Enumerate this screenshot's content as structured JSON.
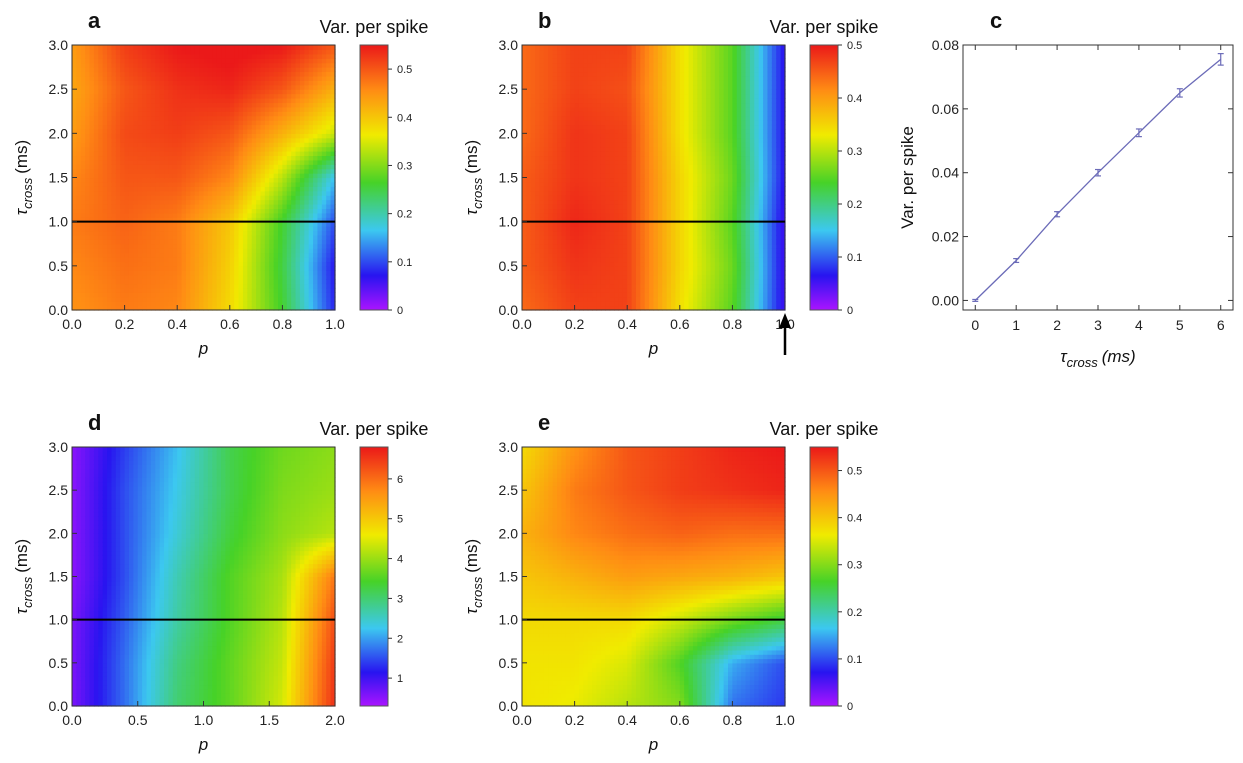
{
  "chart_data": [
    {
      "panel": "a",
      "type": "heatmap",
      "colorbar_title": "Var. per spike",
      "xlabel": "p",
      "ylabel_main": "τ",
      "ylabel_sub": "cross",
      "ylabel_unit": "(ms)",
      "xlim": [
        0,
        1.0
      ],
      "ylim": [
        0,
        3.0
      ],
      "xticks": [
        "0.0",
        "0.2",
        "0.4",
        "0.6",
        "0.8",
        "1.0"
      ],
      "yticks": [
        "0.0",
        "0.5",
        "1.0",
        "1.5",
        "2.0",
        "2.5",
        "3.0"
      ],
      "cbar_range": [
        0,
        0.55
      ],
      "cbar_ticks": [
        "0",
        "0.1",
        "0.2",
        "0.3",
        "0.4",
        "0.5"
      ],
      "hline_y": 1.0,
      "x": [
        0.0,
        0.2,
        0.4,
        0.6,
        0.8,
        1.0
      ],
      "y": [
        0.0,
        0.5,
        1.0,
        1.5,
        2.0,
        2.5,
        3.0
      ],
      "z": [
        [
          0.45,
          0.47,
          0.46,
          0.38,
          0.26,
          0.08
        ],
        [
          0.46,
          0.48,
          0.47,
          0.39,
          0.25,
          0.07
        ],
        [
          0.47,
          0.49,
          0.47,
          0.4,
          0.26,
          0.1
        ],
        [
          0.46,
          0.5,
          0.5,
          0.46,
          0.33,
          0.16
        ],
        [
          0.44,
          0.51,
          0.52,
          0.5,
          0.42,
          0.34
        ],
        [
          0.43,
          0.5,
          0.53,
          0.54,
          0.5,
          0.42
        ],
        [
          0.44,
          0.52,
          0.55,
          0.56,
          0.55,
          0.5
        ]
      ]
    },
    {
      "panel": "b",
      "type": "heatmap",
      "colorbar_title": "Var. per spike",
      "xlabel": "p",
      "ylabel_main": "τ",
      "ylabel_sub": "cross",
      "ylabel_unit": "(ms)",
      "xlim": [
        0,
        1.0
      ],
      "ylim": [
        0,
        3.0
      ],
      "xticks": [
        "0.0",
        "0.2",
        "0.4",
        "0.6",
        "0.8",
        "1.0"
      ],
      "yticks": [
        "0.0",
        "0.5",
        "1.0",
        "1.5",
        "2.0",
        "2.5",
        "3.0"
      ],
      "cbar_range": [
        0,
        0.5
      ],
      "cbar_ticks": [
        "0",
        "0.1",
        "0.2",
        "0.3",
        "0.4",
        "0.5"
      ],
      "hline_y": 1.0,
      "arrow_at_x": 1.0,
      "x": [
        0.0,
        0.2,
        0.4,
        0.6,
        0.8,
        1.0
      ],
      "y": [
        0.0,
        0.5,
        1.0,
        1.5,
        2.0,
        2.5,
        3.0
      ],
      "z": [
        [
          0.44,
          0.47,
          0.47,
          0.34,
          0.25,
          0.05
        ],
        [
          0.45,
          0.48,
          0.47,
          0.35,
          0.26,
          0.05
        ],
        [
          0.45,
          0.49,
          0.47,
          0.35,
          0.25,
          0.05
        ],
        [
          0.45,
          0.48,
          0.47,
          0.35,
          0.26,
          0.06
        ],
        [
          0.44,
          0.48,
          0.47,
          0.34,
          0.25,
          0.06
        ],
        [
          0.44,
          0.47,
          0.46,
          0.34,
          0.25,
          0.06
        ],
        [
          0.44,
          0.47,
          0.47,
          0.34,
          0.25,
          0.06
        ]
      ]
    },
    {
      "panel": "c",
      "type": "line",
      "xlabel_main": "τ",
      "xlabel_sub": "cross",
      "xlabel_unit": "(ms)",
      "ylabel": "Var. per spike",
      "xlim": [
        -0.3,
        6.3
      ],
      "ylim": [
        -0.003,
        0.08
      ],
      "xticks": [
        "0",
        "1",
        "2",
        "3",
        "4",
        "5",
        "6"
      ],
      "yticks": [
        "0.00",
        "0.02",
        "0.04",
        "0.06",
        "0.08"
      ],
      "x": [
        0,
        1,
        2,
        3,
        4,
        5,
        6
      ],
      "y": [
        0.0,
        0.0125,
        0.027,
        0.04,
        0.0525,
        0.065,
        0.0755
      ],
      "err": [
        0.0003,
        0.0006,
        0.0008,
        0.001,
        0.0012,
        0.0013,
        0.0018
      ],
      "color": "#6b6bb8"
    },
    {
      "panel": "d",
      "type": "heatmap",
      "colorbar_title": "Var. per spike",
      "xlabel": "p",
      "ylabel_main": "τ",
      "ylabel_sub": "cross",
      "ylabel_unit": "(ms)",
      "xlim": [
        0,
        2.0
      ],
      "ylim": [
        0,
        3.0
      ],
      "xticks": [
        "0.0",
        "0.5",
        "1.0",
        "1.5",
        "2.0"
      ],
      "yticks": [
        "0.0",
        "0.5",
        "1.0",
        "1.5",
        "2.0",
        "2.5",
        "3.0"
      ],
      "cbar_range": [
        0.3,
        6.8
      ],
      "cbar_ticks": [
        "1",
        "2",
        "3",
        "4",
        "5",
        "6"
      ],
      "hline_y": 1.0,
      "x": [
        0.0,
        0.4,
        0.8,
        1.2,
        1.6,
        2.0
      ],
      "y": [
        0.0,
        0.5,
        1.0,
        1.5,
        2.0,
        2.5,
        3.0
      ],
      "z": [
        [
          0.6,
          1.7,
          3.0,
          3.6,
          4.4,
          6.6
        ],
        [
          0.6,
          1.7,
          2.9,
          3.6,
          4.3,
          6.5
        ],
        [
          0.6,
          1.6,
          2.7,
          3.5,
          4.2,
          6.3
        ],
        [
          0.5,
          1.5,
          2.6,
          3.5,
          4.1,
          5.9
        ],
        [
          0.5,
          1.5,
          2.4,
          3.3,
          3.9,
          4.2
        ],
        [
          0.5,
          1.5,
          2.3,
          3.2,
          3.8,
          4.0
        ],
        [
          0.5,
          1.4,
          2.2,
          3.2,
          3.7,
          3.9
        ]
      ]
    },
    {
      "panel": "e",
      "type": "heatmap",
      "colorbar_title": "Var. per spike",
      "xlabel": "p",
      "ylabel_main": "τ",
      "ylabel_sub": "cross",
      "ylabel_unit": "(ms)",
      "xlim": [
        0,
        1.0
      ],
      "ylim": [
        0,
        3.0
      ],
      "xticks": [
        "0.0",
        "0.2",
        "0.4",
        "0.6",
        "0.8",
        "1.0"
      ],
      "yticks": [
        "0.0",
        "0.5",
        "1.0",
        "1.5",
        "2.0",
        "2.5",
        "3.0"
      ],
      "cbar_range": [
        0,
        0.55
      ],
      "cbar_ticks": [
        "0",
        "0.1",
        "0.2",
        "0.3",
        "0.4",
        "0.5"
      ],
      "hline_y": 1.0,
      "x": [
        0.0,
        0.2,
        0.4,
        0.6,
        0.8,
        1.0
      ],
      "y": [
        0.0,
        0.5,
        1.0,
        1.5,
        2.0,
        2.5,
        3.0
      ],
      "z": [
        [
          0.37,
          0.36,
          0.33,
          0.3,
          0.12,
          0.09
        ],
        [
          0.37,
          0.37,
          0.35,
          0.27,
          0.15,
          0.1
        ],
        [
          0.38,
          0.38,
          0.38,
          0.34,
          0.29,
          0.25
        ],
        [
          0.4,
          0.42,
          0.44,
          0.43,
          0.42,
          0.4
        ],
        [
          0.42,
          0.46,
          0.48,
          0.49,
          0.48,
          0.48
        ],
        [
          0.4,
          0.47,
          0.5,
          0.52,
          0.53,
          0.54
        ],
        [
          0.38,
          0.45,
          0.5,
          0.52,
          0.54,
          0.55
        ]
      ]
    }
  ]
}
